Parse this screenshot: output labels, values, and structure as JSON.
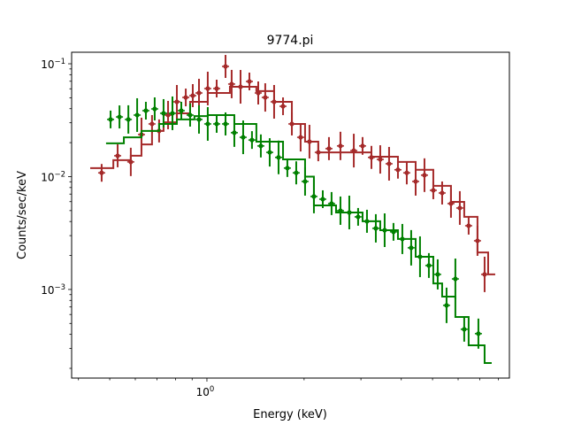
{
  "chart_data": {
    "type": "scatter",
    "title": "9774.pi",
    "xlabel": "Energy (keV)",
    "ylabel": "Counts/sec/keV",
    "xscale": "log",
    "yscale": "log",
    "xlim": [
      0.381,
      8.65
    ],
    "ylim": [
      0.000164,
      0.1265
    ],
    "grid": false,
    "x_major_ticks": [
      {
        "value": 1,
        "base": "10",
        "exp": "0"
      }
    ],
    "x_minor_ticks": [
      0.4,
      0.5,
      0.6,
      0.7,
      0.8,
      0.9,
      2,
      3,
      4,
      5,
      6,
      7,
      8
    ],
    "y_major_ticks": [
      {
        "value": 0.1,
        "base": "10",
        "exp": "−1"
      },
      {
        "value": 0.01,
        "base": "10",
        "exp": "−2"
      },
      {
        "value": 0.001,
        "base": "10",
        "exp": "−3"
      }
    ],
    "series": [
      {
        "color": "#a52a2a",
        "points": [
          [
            0.472,
            0.0108
          ],
          [
            0.529,
            0.0153
          ],
          [
            0.581,
            0.0135
          ],
          [
            0.627,
            0.0236
          ],
          [
            0.676,
            0.0293
          ],
          [
            0.711,
            0.0254
          ],
          [
            0.758,
            0.0351
          ],
          [
            0.807,
            0.046
          ],
          [
            0.86,
            0.0503
          ],
          [
            0.904,
            0.0522
          ],
          [
            0.945,
            0.0551
          ],
          [
            1.006,
            0.0603
          ],
          [
            1.072,
            0.0603
          ],
          [
            1.142,
            0.0947
          ],
          [
            1.193,
            0.0661
          ],
          [
            1.271,
            0.0625
          ],
          [
            1.354,
            0.0697
          ],
          [
            1.442,
            0.0551
          ],
          [
            1.516,
            0.0503
          ],
          [
            1.615,
            0.046
          ],
          [
            1.721,
            0.042
          ],
          [
            1.833,
            0.0293
          ],
          [
            1.951,
            0.0223
          ],
          [
            2.078,
            0.0204
          ],
          [
            2.213,
            0.0164
          ],
          [
            2.388,
            0.0177
          ],
          [
            2.592,
            0.0187
          ],
          [
            2.851,
            0.017
          ],
          [
            3.035,
            0.0187
          ],
          [
            3.233,
            0.0148
          ],
          [
            3.443,
            0.0142
          ],
          [
            3.667,
            0.013
          ],
          [
            3.906,
            0.0115
          ],
          [
            4.16,
            0.0108
          ],
          [
            4.432,
            0.00906
          ],
          [
            4.72,
            0.0103
          ],
          [
            5.027,
            0.00756
          ],
          [
            5.354,
            0.00716
          ],
          [
            5.702,
            0.00577
          ],
          [
            6.073,
            0.00527
          ],
          [
            6.468,
            0.00367
          ],
          [
            6.889,
            0.0027
          ],
          [
            7.248,
            0.00136
          ]
        ],
        "model": [
          [
            0.435,
            0.0119
          ],
          [
            0.513,
            0.014
          ],
          [
            0.581,
            0.0153
          ],
          [
            0.627,
            0.0193
          ],
          [
            0.676,
            0.0254
          ],
          [
            0.734,
            0.0303
          ],
          [
            0.807,
            0.0364
          ],
          [
            0.887,
            0.046
          ],
          [
            1.006,
            0.0551
          ],
          [
            1.178,
            0.0625
          ],
          [
            1.423,
            0.0572
          ],
          [
            1.615,
            0.046
          ],
          [
            1.833,
            0.0293
          ],
          [
            2.014,
            0.0204
          ],
          [
            2.213,
            0.0164
          ],
          [
            3.233,
            0.015
          ],
          [
            3.906,
            0.0135
          ],
          [
            4.432,
            0.0115
          ],
          [
            5.027,
            0.00828
          ],
          [
            5.702,
            0.00597
          ],
          [
            6.267,
            0.0044
          ],
          [
            6.889,
            0.00213
          ],
          [
            7.433,
            0.00136
          ]
        ]
      },
      {
        "color": "#008000",
        "points": [
          [
            0.503,
            0.0321
          ],
          [
            0.536,
            0.0338
          ],
          [
            0.571,
            0.0321
          ],
          [
            0.608,
            0.0351
          ],
          [
            0.647,
            0.0384
          ],
          [
            0.689,
            0.0398
          ],
          [
            0.734,
            0.0364
          ],
          [
            0.782,
            0.0364
          ],
          [
            0.833,
            0.0384
          ],
          [
            0.887,
            0.0351
          ],
          [
            0.945,
            0.0321
          ],
          [
            1.006,
            0.0293
          ],
          [
            1.072,
            0.0293
          ],
          [
            1.142,
            0.0293
          ],
          [
            1.216,
            0.0245
          ],
          [
            1.295,
            0.0223
          ],
          [
            1.379,
            0.0211
          ],
          [
            1.469,
            0.0187
          ],
          [
            1.565,
            0.0164
          ],
          [
            1.667,
            0.0148
          ],
          [
            1.775,
            0.0119
          ],
          [
            1.891,
            0.0108
          ],
          [
            2.014,
            0.00906
          ],
          [
            2.145,
            0.00667
          ],
          [
            2.285,
            0.00631
          ],
          [
            2.433,
            0.00577
          ],
          [
            2.592,
            0.00499
          ],
          [
            2.761,
            0.00481
          ],
          [
            2.94,
            0.0044
          ],
          [
            3.132,
            0.00402
          ],
          [
            3.336,
            0.00348
          ],
          [
            3.553,
            0.00335
          ],
          [
            3.784,
            0.00324
          ],
          [
            4.031,
            0.0028
          ],
          [
            4.293,
            0.00234
          ],
          [
            4.572,
            0.00195
          ],
          [
            4.87,
            0.00163
          ],
          [
            5.187,
            0.00136
          ],
          [
            5.525,
            0.000723
          ],
          [
            5.884,
            0.00124
          ],
          [
            6.267,
            0.000444
          ],
          [
            6.934,
            0.000406
          ]
        ],
        "model": [
          [
            0.487,
            0.0197
          ],
          [
            0.553,
            0.0223
          ],
          [
            0.627,
            0.0254
          ],
          [
            0.711,
            0.0293
          ],
          [
            0.807,
            0.0321
          ],
          [
            0.915,
            0.0344
          ],
          [
            1.006,
            0.0351
          ],
          [
            1.216,
            0.0293
          ],
          [
            1.423,
            0.0204
          ],
          [
            1.721,
            0.0142
          ],
          [
            2.014,
            0.01
          ],
          [
            2.145,
            0.00556
          ],
          [
            2.512,
            0.00481
          ],
          [
            3.035,
            0.00402
          ],
          [
            3.443,
            0.00335
          ],
          [
            3.906,
            0.0028
          ],
          [
            4.432,
            0.00195
          ],
          [
            5.027,
            0.00113
          ],
          [
            5.354,
            0.000865
          ],
          [
            5.884,
            0.000571
          ],
          [
            6.468,
            0.00032
          ],
          [
            7.248,
            0.000223
          ]
        ]
      }
    ]
  }
}
